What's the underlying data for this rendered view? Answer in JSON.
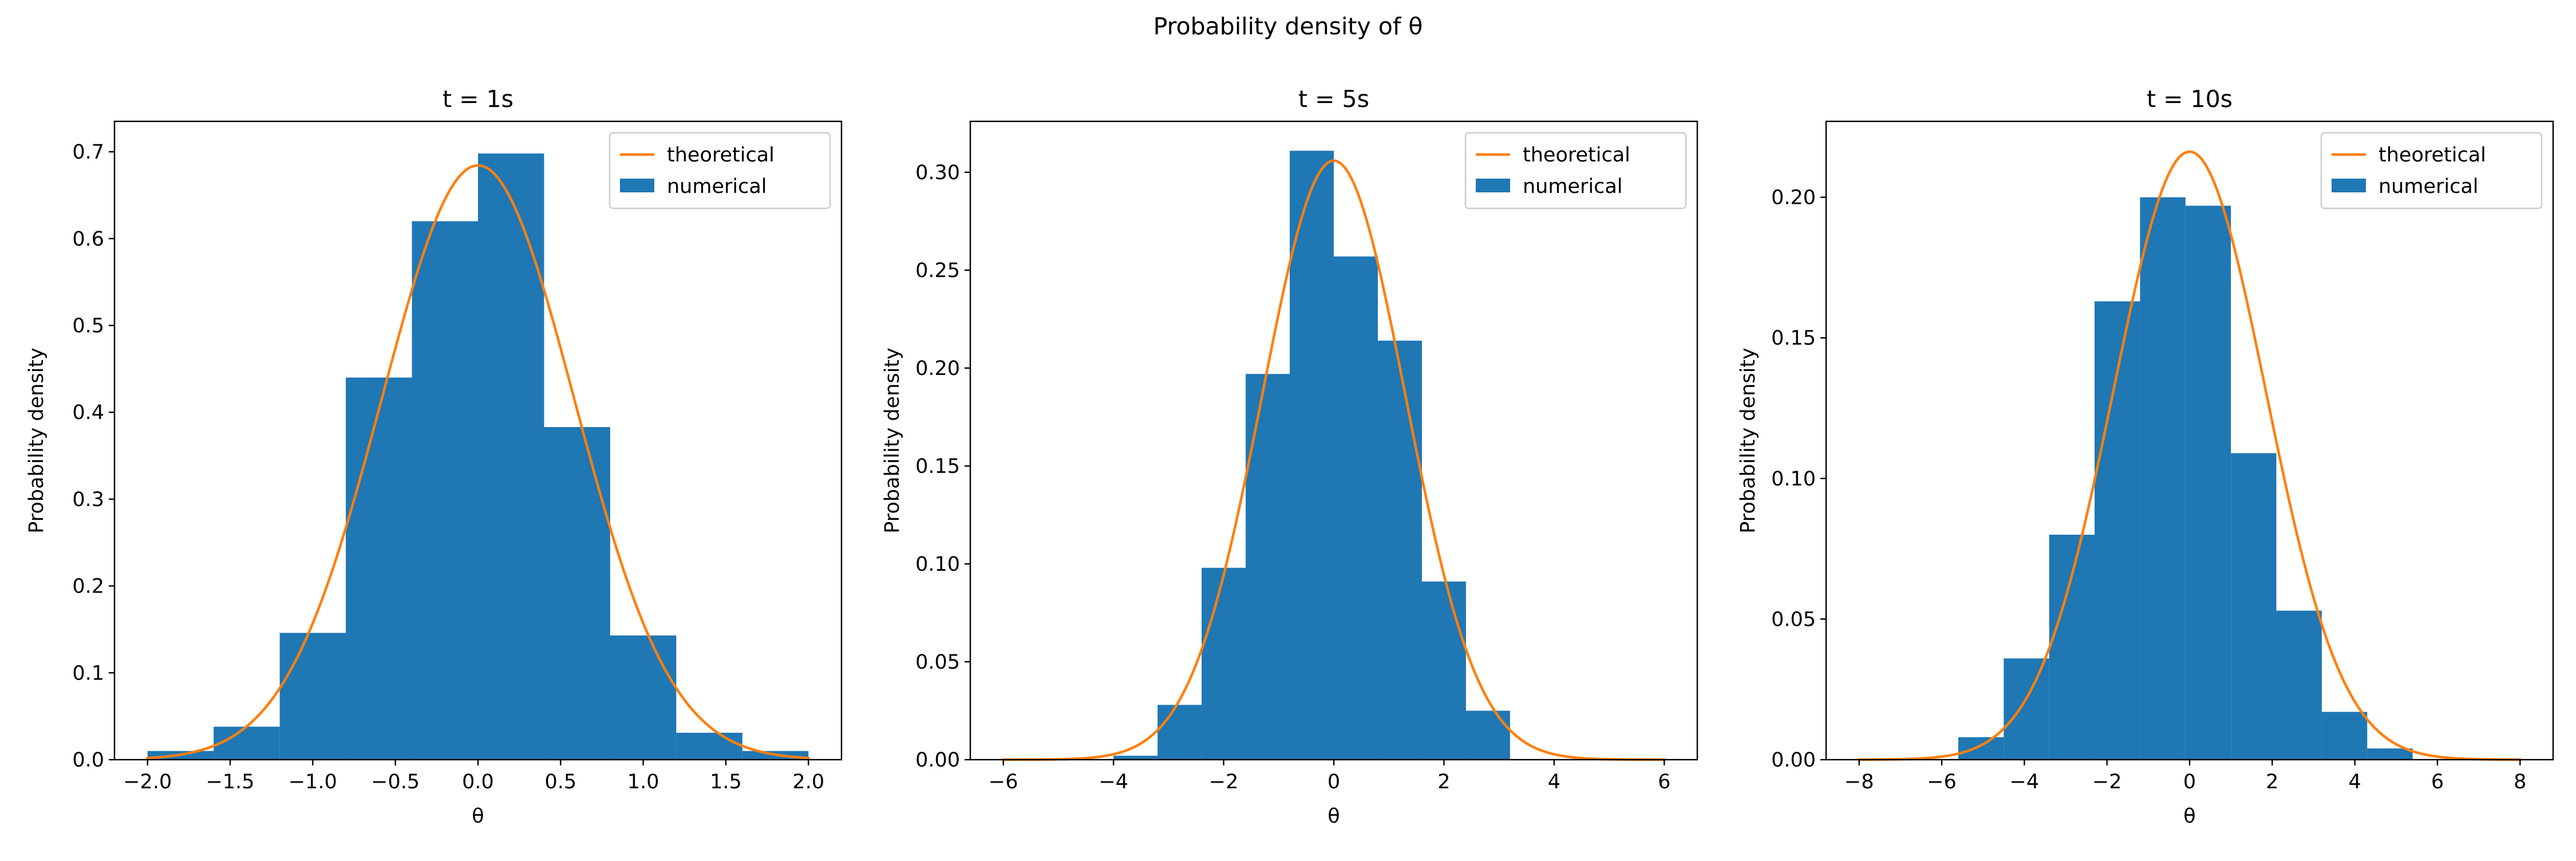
{
  "figure": {
    "suptitle": "Probability density of θ"
  },
  "colors": {
    "numerical": "#1f77b4",
    "theoretical": "#ff7f0e"
  },
  "chart_data": [
    {
      "type": "bar",
      "title": "t = 1s",
      "xlabel": "θ",
      "ylabel": "Probability density",
      "xlim": [
        -2.2,
        2.2
      ],
      "ylim": [
        0,
        0.735
      ],
      "xticks": [
        -2.0,
        -1.5,
        -1.0,
        -0.5,
        0.0,
        0.5,
        1.0,
        1.5,
        2.0
      ],
      "xtick_labels": [
        "−2.0",
        "−1.5",
        "−1.0",
        "−0.5",
        "0.0",
        "0.5",
        "1.0",
        "1.5",
        "2.0"
      ],
      "yticks": [
        0.0,
        0.1,
        0.2,
        0.3,
        0.4,
        0.5,
        0.6,
        0.7
      ],
      "ytick_labels": [
        "0.0",
        "0.1",
        "0.2",
        "0.3",
        "0.4",
        "0.5",
        "0.6",
        "0.7"
      ],
      "legend": {
        "position": "top-right",
        "entries": [
          "theoretical",
          "numerical"
        ]
      },
      "histogram": {
        "name": "numerical",
        "bin_edges": [
          -2.0,
          -1.6,
          -1.2,
          -0.8,
          -0.4,
          0.0,
          0.4,
          0.8,
          1.2,
          1.6,
          2.0
        ],
        "values": [
          0.01,
          0.038,
          0.146,
          0.44,
          0.62,
          0.698,
          0.383,
          0.143,
          0.031,
          0.01
        ]
      },
      "theoretical": {
        "name": "theoretical",
        "distribution": "normal",
        "mean": 0,
        "std": 0.583,
        "x_range": [
          -2.0,
          2.0
        ]
      }
    },
    {
      "type": "bar",
      "title": "t = 5s",
      "xlabel": "θ",
      "ylabel": "Probability density",
      "xlim": [
        -6.6,
        6.6
      ],
      "ylim": [
        0,
        0.326
      ],
      "xticks": [
        -6,
        -4,
        -2,
        0,
        2,
        4,
        6
      ],
      "xtick_labels": [
        "−6",
        "−4",
        "−2",
        "0",
        "2",
        "4",
        "6"
      ],
      "yticks": [
        0.0,
        0.05,
        0.1,
        0.15,
        0.2,
        0.25,
        0.3
      ],
      "ytick_labels": [
        "0.00",
        "0.05",
        "0.10",
        "0.15",
        "0.20",
        "0.25",
        "0.30"
      ],
      "legend": {
        "position": "top-right",
        "entries": [
          "theoretical",
          "numerical"
        ]
      },
      "histogram": {
        "name": "numerical",
        "bin_edges": [
          -4.0,
          -3.2,
          -2.4,
          -1.6,
          -0.8,
          0.0,
          0.8,
          1.6,
          2.4,
          3.2
        ],
        "values": [
          0.002,
          0.028,
          0.098,
          0.197,
          0.311,
          0.257,
          0.214,
          0.091,
          0.025
        ]
      },
      "theoretical": {
        "name": "theoretical",
        "distribution": "normal",
        "mean": 0,
        "std": 1.304,
        "x_range": [
          -6.0,
          6.0
        ]
      }
    },
    {
      "type": "bar",
      "title": "t = 10s",
      "xlabel": "θ",
      "ylabel": "Probability density",
      "xlim": [
        -8.8,
        8.8
      ],
      "ylim": [
        0,
        0.227
      ],
      "xticks": [
        -8,
        -6,
        -4,
        -2,
        0,
        2,
        4,
        6,
        8
      ],
      "xtick_labels": [
        "−8",
        "−6",
        "−4",
        "−2",
        "0",
        "2",
        "4",
        "6",
        "8"
      ],
      "yticks": [
        0.0,
        0.05,
        0.1,
        0.15,
        0.2
      ],
      "ytick_labels": [
        "0.00",
        "0.05",
        "0.10",
        "0.15",
        "0.20"
      ],
      "legend": {
        "position": "top-right",
        "entries": [
          "theoretical",
          "numerical"
        ]
      },
      "histogram": {
        "name": "numerical",
        "bin_edges": [
          -5.6,
          -4.5,
          -3.4,
          -2.3,
          -1.2,
          -0.1,
          1.0,
          2.1,
          3.2,
          4.3,
          5.4,
          6.5
        ],
        "values": [
          0.008,
          0.036,
          0.08,
          0.163,
          0.2,
          0.197,
          0.109,
          0.053,
          0.017,
          0.004,
          0.0
        ]
      },
      "theoretical": {
        "name": "theoretical",
        "distribution": "normal",
        "mean": 0,
        "std": 1.845,
        "x_range": [
          -8.0,
          8.0
        ]
      }
    }
  ]
}
